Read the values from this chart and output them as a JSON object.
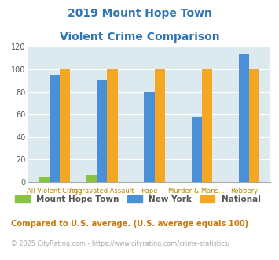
{
  "title_line1": "2019 Mount Hope Town",
  "title_line2": "Violent Crime Comparison",
  "categories": [
    "All Violent Crime",
    "Aggravated Assault",
    "Rape",
    "Murder & Mans...",
    "Robbery"
  ],
  "groups": [
    {
      "name": "Mount Hope Town",
      "color": "#88c441",
      "values": [
        4,
        6,
        0,
        0,
        0
      ]
    },
    {
      "name": "New York",
      "color": "#4a90d9",
      "values": [
        95,
        91,
        80,
        58,
        114
      ]
    },
    {
      "name": "National",
      "color": "#f5a623",
      "values": [
        100,
        100,
        100,
        100,
        100
      ]
    }
  ],
  "ylim": [
    0,
    120
  ],
  "yticks": [
    0,
    20,
    40,
    60,
    80,
    100,
    120
  ],
  "plot_bg_color": "#dce9ef",
  "title_color": "#2e75b6",
  "xlabel_color": "#b8860b",
  "footnote1": "Compared to U.S. average. (U.S. average equals 100)",
  "footnote2": "© 2025 CityRating.com - https://www.cityrating.com/crime-statistics/",
  "footnote1_color": "#c8760a",
  "footnote2_color": "#aaaaaa",
  "grid_color": "#ffffff",
  "bar_width": 0.22
}
